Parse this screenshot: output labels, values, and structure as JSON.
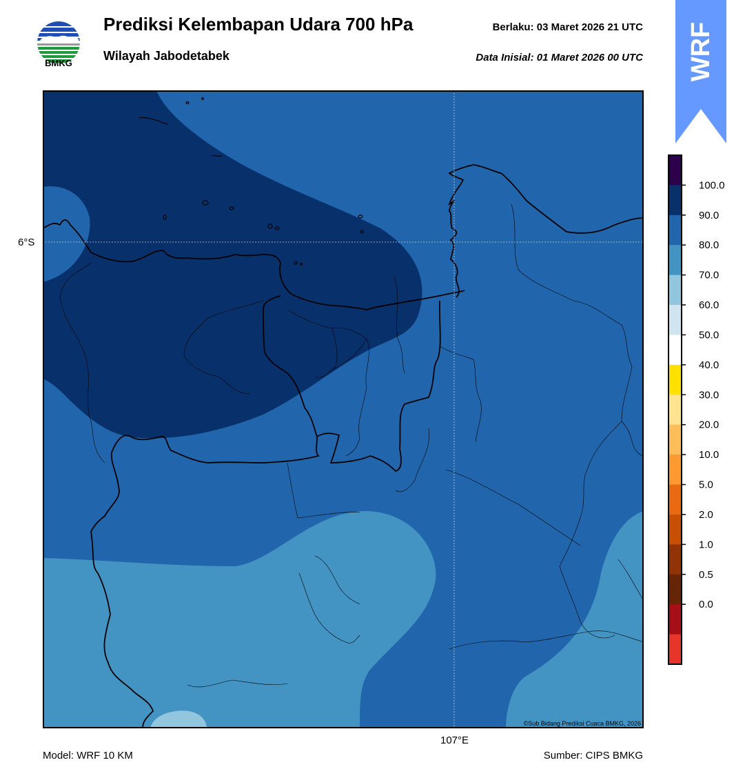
{
  "header": {
    "title": "Prediksi Kelembapan Udara 700 hPa",
    "region": "Wilayah Jabodetabek",
    "valid": "Berlaku:  03 Maret 2026 21 UTC",
    "initial": "Data Inisial:  01 Maret 2026 00 UTC"
  },
  "logo": {
    "text": "BMKG"
  },
  "badge": {
    "text": "WRF",
    "color": "#6699ff"
  },
  "map": {
    "lat_label": "6°S",
    "lon_label": "107°E",
    "copyright": "©Sub Bidang Prediksi Cuaca BMKG, 2026",
    "fill_colors": {
      "level_90_100": "#08306b",
      "level_80_90": "#2166ac",
      "level_70_80": "#4393c3",
      "level_60_70": "#92c5de"
    }
  },
  "colorbar": {
    "labels": [
      "100.0",
      "90.0",
      "80.0",
      "70.0",
      "60.0",
      "50.0",
      "40.0",
      "30.0",
      "20.0",
      "10.0",
      "5.0",
      "2.0",
      "1.0",
      "0.5",
      "0.0"
    ],
    "colors": [
      "#2d004b",
      "#08306b",
      "#2166ac",
      "#4393c3",
      "#92c5de",
      "#d1e5f0",
      "#ffffff",
      "#ffe100",
      "#fee391",
      "#fdbd59",
      "#fc9a31",
      "#e96a10",
      "#c94f04",
      "#913307",
      "#662506",
      "#a50f15",
      "#e8352b"
    ]
  },
  "footer": {
    "model": "Model: WRF 10 KM",
    "source": "Sumber: CIPS BMKG"
  }
}
